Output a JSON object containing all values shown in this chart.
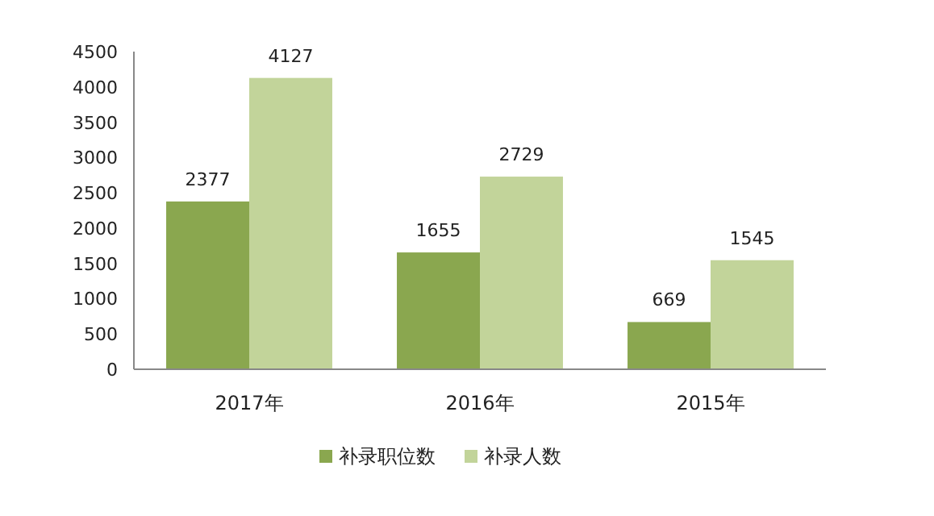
{
  "chart_data": {
    "type": "bar",
    "categories": [
      "2017年",
      "2016年",
      "2015年"
    ],
    "series": [
      {
        "name": "补录职位数",
        "color": "#8aa74f",
        "values": [
          2377,
          1655,
          669
        ]
      },
      {
        "name": "补录人数",
        "color": "#c2d49a",
        "values": [
          4127,
          2729,
          1545
        ]
      }
    ],
    "ylim": [
      0,
      4500
    ],
    "yticks": [
      0,
      500,
      1000,
      1500,
      2000,
      2500,
      3000,
      3500,
      4000,
      4500
    ],
    "data_labels": true,
    "legend": "bottom",
    "grid": false
  }
}
